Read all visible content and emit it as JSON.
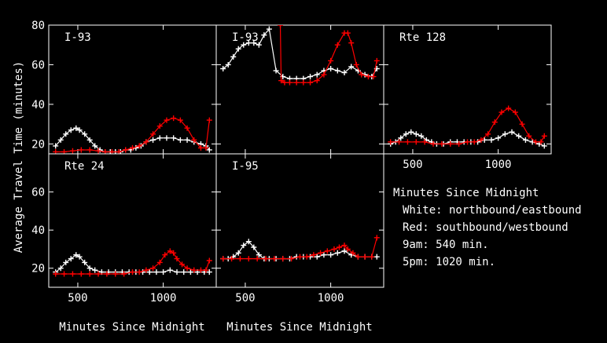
{
  "figure": {
    "ylabel": "Average Travel Time  (minutes)",
    "xlabel": "Minutes Since Midnight",
    "legend": {
      "title": "Minutes Since Midnight",
      "lines": [
        "White: northbound/eastbound",
        "Red: southbound/westbound",
        "9am: 540 min.",
        "5pm: 1020 min."
      ]
    },
    "colors": {
      "northbound": "#ffffff",
      "southbound": "#ff0000",
      "background": "#000000",
      "frame": "#ffffff"
    }
  },
  "chart_data": [
    {
      "type": "line",
      "title": "I-93",
      "xlim": [
        330,
        1310
      ],
      "ylim": [
        15,
        80
      ],
      "x_ticks": [
        500,
        1000
      ],
      "y_ticks": [
        20,
        40,
        60,
        80
      ],
      "show_x_ticklabels": false,
      "series": [
        {
          "name": "White: northbound/eastbound",
          "x": [
            370,
            400,
            430,
            460,
            490,
            510,
            540,
            570,
            600,
            630,
            660,
            690,
            720,
            750,
            780,
            810,
            840,
            870,
            900,
            940,
            980,
            1020,
            1060,
            1100,
            1140,
            1180,
            1220,
            1250,
            1270
          ],
          "y": [
            19,
            22,
            25,
            27,
            28,
            27,
            25,
            22,
            19,
            17,
            16,
            16,
            16,
            16,
            17,
            17,
            18,
            19,
            21,
            22,
            23,
            23,
            23,
            22,
            22,
            21,
            20,
            19,
            17
          ]
        },
        {
          "name": "Red: southbound/westbound",
          "x": [
            370,
            420,
            470,
            520,
            570,
            620,
            660,
            700,
            740,
            780,
            820,
            860,
            900,
            940,
            980,
            1020,
            1060,
            1100,
            1140,
            1180,
            1220,
            1250,
            1270
          ],
          "y": [
            16,
            16,
            16.5,
            17,
            17,
            16.5,
            16,
            16,
            16,
            17,
            18,
            19,
            21,
            25,
            29,
            32,
            33,
            32,
            28,
            22,
            18,
            18,
            32
          ]
        }
      ]
    },
    {
      "type": "line",
      "title": "I-93",
      "xlim": [
        330,
        1310
      ],
      "ylim": [
        15,
        80
      ],
      "x_ticks": [
        500,
        1000
      ],
      "y_ticks": [
        20,
        40,
        60,
        80
      ],
      "show_x_ticklabels": false,
      "series": [
        {
          "name": "White: northbound/eastbound",
          "x": [
            370,
            400,
            430,
            460,
            490,
            520,
            550,
            580,
            610,
            640,
            680,
            720,
            760,
            800,
            840,
            880,
            920,
            960,
            1000,
            1040,
            1080,
            1120,
            1160,
            1200,
            1240,
            1270
          ],
          "y": [
            58,
            60,
            64,
            68,
            70,
            71,
            71,
            70,
            75,
            78,
            57,
            54,
            53,
            53,
            53,
            54,
            55,
            57,
            58,
            57,
            56,
            59,
            57,
            55,
            54,
            58
          ]
        },
        {
          "name": "Red: southbound/westbound",
          "x": [
            705,
            710,
            730,
            760,
            800,
            840,
            880,
            920,
            960,
            1000,
            1040,
            1080,
            1100,
            1120,
            1150,
            1180,
            1220,
            1250,
            1270
          ],
          "y": [
            80,
            52,
            51,
            51,
            51,
            51,
            51,
            52,
            55,
            62,
            70,
            76,
            76,
            71,
            60,
            55,
            54,
            54,
            62
          ]
        }
      ]
    },
    {
      "type": "line",
      "title": "Rte 128",
      "xlim": [
        330,
        1310
      ],
      "ylim": [
        15,
        80
      ],
      "x_ticks": [
        500,
        1000
      ],
      "y_ticks": [
        20,
        40,
        60,
        80
      ],
      "show_x_ticklabels": true,
      "series": [
        {
          "name": "White: northbound/eastbound",
          "x": [
            370,
            400,
            430,
            460,
            490,
            520,
            550,
            580,
            610,
            640,
            680,
            720,
            760,
            800,
            840,
            880,
            920,
            960,
            1000,
            1040,
            1080,
            1120,
            1160,
            1200,
            1240,
            1270
          ],
          "y": [
            20,
            21,
            23,
            25,
            26,
            25,
            24,
            22,
            21,
            20,
            20,
            21,
            21,
            21,
            21,
            21,
            22,
            22,
            23,
            25,
            26,
            24,
            22,
            21,
            20,
            19
          ]
        },
        {
          "name": "Red: southbound/westbound",
          "x": [
            370,
            420,
            470,
            520,
            570,
            620,
            670,
            720,
            770,
            820,
            860,
            900,
            940,
            980,
            1020,
            1060,
            1100,
            1140,
            1180,
            1220,
            1250,
            1270
          ],
          "y": [
            21,
            21,
            21,
            21,
            21,
            20,
            20,
            20,
            20,
            21,
            21,
            22,
            25,
            31,
            36,
            38,
            36,
            30,
            24,
            21,
            21,
            24
          ]
        }
      ]
    },
    {
      "type": "line",
      "title": "Rte 24",
      "xlim": [
        330,
        1310
      ],
      "ylim": [
        10,
        80
      ],
      "x_ticks": [
        500,
        1000
      ],
      "y_ticks": [
        20,
        40,
        60
      ],
      "show_x_ticklabels": true,
      "series": [
        {
          "name": "White: northbound/eastbound",
          "x": [
            370,
            400,
            430,
            460,
            490,
            510,
            540,
            570,
            600,
            640,
            680,
            720,
            760,
            800,
            840,
            880,
            920,
            960,
            1000,
            1040,
            1080,
            1120,
            1160,
            1200,
            1240,
            1270
          ],
          "y": [
            18,
            20,
            23,
            25,
            27,
            26,
            23,
            20,
            19,
            18,
            18,
            18,
            18,
            18,
            18,
            18,
            18,
            18,
            18,
            19,
            18,
            18,
            18,
            18,
            18,
            18
          ]
        },
        {
          "name": "Red: southbound/westbound",
          "x": [
            370,
            420,
            470,
            520,
            570,
            620,
            670,
            720,
            770,
            820,
            860,
            900,
            940,
            980,
            1010,
            1040,
            1060,
            1080,
            1110,
            1140,
            1180,
            1220,
            1250,
            1270
          ],
          "y": [
            17,
            17,
            17,
            17,
            17,
            17,
            17,
            17,
            17,
            18,
            18,
            19,
            20,
            23,
            27,
            29,
            28,
            25,
            22,
            20,
            19,
            19,
            19,
            24
          ]
        }
      ]
    },
    {
      "type": "line",
      "title": "I-95",
      "xlim": [
        330,
        1310
      ],
      "ylim": [
        10,
        80
      ],
      "x_ticks": [
        500,
        1000
      ],
      "y_ticks": [
        20,
        40,
        60
      ],
      "show_x_ticklabels": true,
      "series": [
        {
          "name": "White: northbound/eastbound",
          "x": [
            370,
            400,
            430,
            460,
            490,
            520,
            550,
            580,
            610,
            640,
            680,
            720,
            760,
            800,
            840,
            880,
            920,
            960,
            1000,
            1040,
            1080,
            1120,
            1160,
            1200,
            1240,
            1270
          ],
          "y": [
            25,
            25,
            26,
            28,
            32,
            34,
            31,
            27,
            25,
            25,
            25,
            25,
            25,
            26,
            26,
            26,
            26,
            27,
            27,
            28,
            29,
            27,
            26,
            26,
            26,
            26
          ]
        },
        {
          "name": "Red: southbound/westbound",
          "x": [
            370,
            420,
            470,
            520,
            570,
            620,
            670,
            720,
            770,
            820,
            860,
            900,
            940,
            980,
            1020,
            1050,
            1080,
            1100,
            1130,
            1160,
            1200,
            1240,
            1270
          ],
          "y": [
            25,
            25,
            25,
            25,
            25,
            25,
            25,
            25,
            25,
            26,
            26,
            27,
            28,
            29,
            30,
            31,
            32,
            30,
            28,
            26,
            26,
            26,
            36
          ]
        }
      ]
    }
  ]
}
